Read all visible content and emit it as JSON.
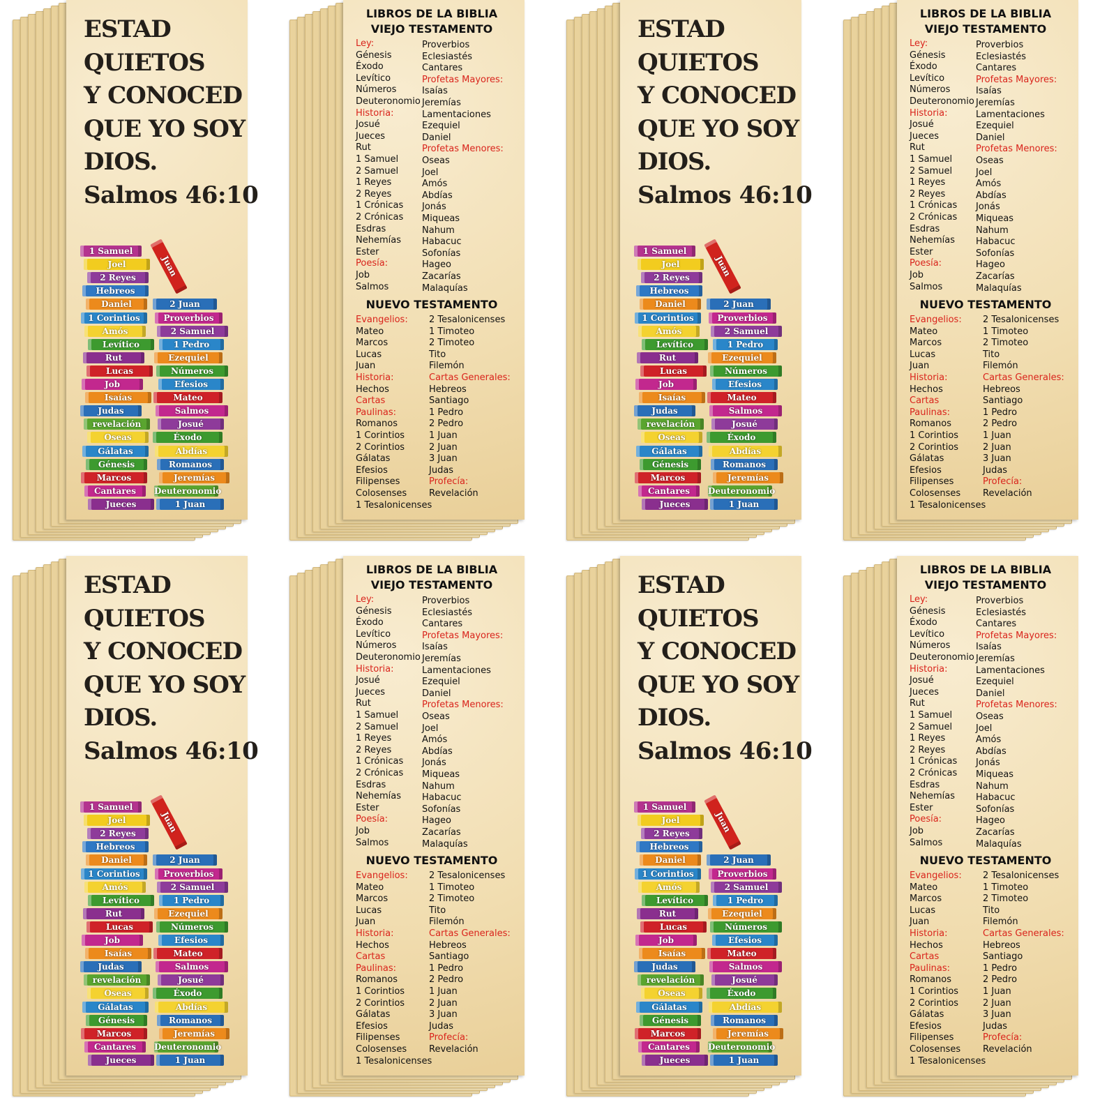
{
  "front": {
    "verse_lines": [
      "ESTAD",
      "QUIETOS",
      "Y CONOCED",
      "QUE YO SOY",
      "DIOS."
    ],
    "reference": "Salmos 46:10",
    "tilted_book": {
      "name": "Juan",
      "color": "#d0231d"
    },
    "books_left": [
      {
        "name": "1 Samuel",
        "color": "#b4338f"
      },
      {
        "name": "Joel",
        "color": "#f2cc1f"
      },
      {
        "name": "2 Reyes",
        "color": "#8e3b9a"
      },
      {
        "name": "Hebreos",
        "color": "#2f78c4"
      },
      {
        "name": "Daniel",
        "color": "#ec8a1c"
      },
      {
        "name": "1 Corintios",
        "color": "#2a86c9"
      },
      {
        "name": "Amós",
        "color": "#f4d230"
      },
      {
        "name": "Levítico",
        "color": "#3d9a2f"
      },
      {
        "name": "Rut",
        "color": "#8a2f8e"
      },
      {
        "name": "Lucas",
        "color": "#cf2228"
      },
      {
        "name": "Job",
        "color": "#c2288e"
      },
      {
        "name": "Isaías",
        "color": "#ec8a1c"
      },
      {
        "name": "Judas",
        "color": "#2a6fb8"
      },
      {
        "name": "revelación",
        "color": "#5aa52f"
      },
      {
        "name": "Oseas",
        "color": "#f4d230"
      },
      {
        "name": "Gálatas",
        "color": "#2a86c9"
      },
      {
        "name": "Génesis",
        "color": "#3d9a2f"
      },
      {
        "name": "Marcos",
        "color": "#cf2228"
      },
      {
        "name": "Cantares",
        "color": "#c2288e"
      },
      {
        "name": "Jueces",
        "color": "#8a2f8e"
      }
    ],
    "books_right": [
      {
        "name": "2 Juan",
        "color": "#2a6fb8"
      },
      {
        "name": "Proverbios",
        "color": "#c2288e"
      },
      {
        "name": "2 Samuel",
        "color": "#8e3b9a"
      },
      {
        "name": "1 Pedro",
        "color": "#2a86c9"
      },
      {
        "name": "Ezequiel",
        "color": "#ec8a1c"
      },
      {
        "name": "Números",
        "color": "#3d9a2f"
      },
      {
        "name": "Efesios",
        "color": "#2a86c9"
      },
      {
        "name": "Mateo",
        "color": "#cf2228"
      },
      {
        "name": "Salmos",
        "color": "#c2288e"
      },
      {
        "name": "Josué",
        "color": "#8e3b9a"
      },
      {
        "name": "Éxodo",
        "color": "#3d9a2f"
      },
      {
        "name": "Abdías",
        "color": "#f4d230"
      },
      {
        "name": "Romanos",
        "color": "#2a6fb8"
      },
      {
        "name": "Jeremías",
        "color": "#ec8a1c"
      },
      {
        "name": "Deuteronomio",
        "color": "#5aa52f"
      },
      {
        "name": "1 Juan",
        "color": "#2a6fb8"
      }
    ]
  },
  "back": {
    "title_lines": [
      "LIBROS DE LA BIBLIA",
      "VIEJO TESTAMENTO"
    ],
    "old_testament": {
      "col1": [
        {
          "heading": "Ley:"
        },
        "Génesis",
        "Éxodo",
        "Levítico",
        "Números",
        "Deuteronomio",
        {
          "heading": "Historia:"
        },
        "Josué",
        "Jueces",
        "Rut",
        "1 Samuel",
        "2 Samuel",
        "1 Reyes",
        "2 Reyes",
        "1 Crónicas",
        "2 Crónicas",
        "Esdras",
        "Nehemías",
        "Ester",
        {
          "heading": "Poesía:"
        },
        "Job",
        "Salmos"
      ],
      "col2": [
        "Proverbios",
        "Eclesiastés",
        "Cantares",
        {
          "heading": "Profetas Mayores:"
        },
        "Isaías",
        "Jeremías",
        "Lamentaciones",
        "Ezequiel",
        "Daniel",
        {
          "heading": "Profetas Menores:"
        },
        "Oseas",
        "Joel",
        "Amós",
        "Abdías",
        "Jonás",
        "Miqueas",
        "Nahum",
        "Habacuc",
        "Sofonías",
        "Hageo",
        "Zacarías",
        "Malaquías"
      ]
    },
    "new_testament_title": "NUEVO TESTAMENTO",
    "new_testament": {
      "col1": [
        {
          "heading": "Evangelios:"
        },
        "Mateo",
        "Marcos",
        "Lucas",
        "Juan",
        {
          "heading": "Historia:"
        },
        "Hechos",
        {
          "heading": "Cartas"
        },
        {
          "heading": "Paulinas:"
        },
        "Romanos",
        "1 Corintios",
        "2 Corintios",
        "Gálatas",
        "Efesios",
        "Filipenses",
        "Colosenses",
        "1 Tesalonicenses"
      ],
      "col2": [
        "2 Tesalonicenses",
        "1 Timoteo",
        "2 Timoteo",
        "Tito",
        "Filemón",
        {
          "heading": "Cartas Generales:"
        },
        "Hebreos",
        "Santiago",
        "1 Pedro",
        "2 Pedro",
        "1 Juan",
        "2 Juan",
        "3 Juan",
        "Judas",
        {
          "heading": "Profecía:"
        },
        "Revelación"
      ]
    }
  }
}
